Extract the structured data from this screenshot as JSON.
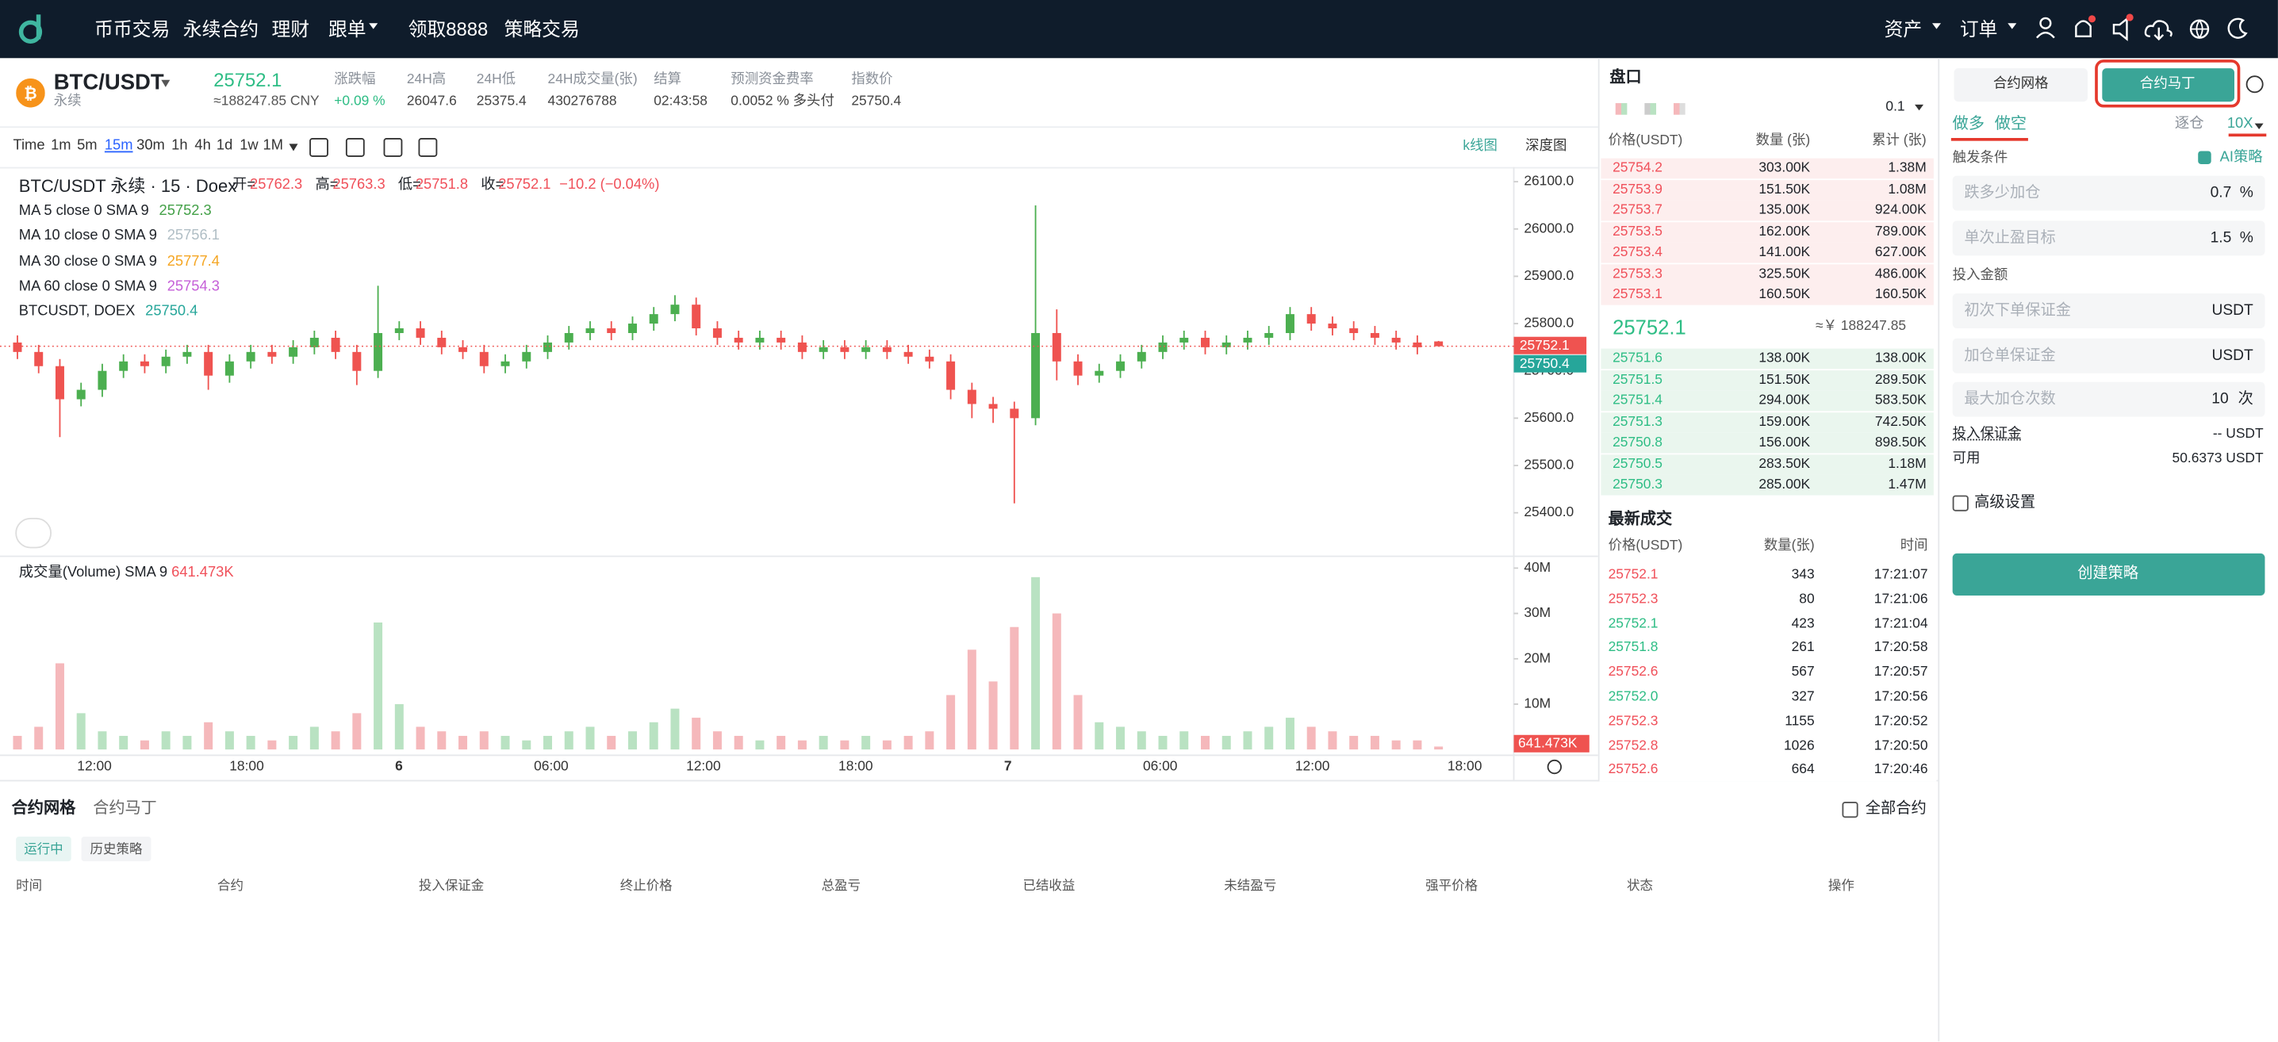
{
  "nav": {
    "items": [
      "币币交易",
      "永续合约",
      "理财",
      "跟单",
      "领取8888",
      "策略交易"
    ],
    "right": [
      "资产",
      "订单"
    ]
  },
  "ticker": {
    "symbol": "BTC/USDT",
    "sub": "永续",
    "price": "25752.1",
    "cny": "≈188247.85 CNY",
    "stats": [
      {
        "label": "涨跌幅",
        "value": "+0.09 %"
      },
      {
        "label": "24H高",
        "value": "26047.6"
      },
      {
        "label": "24H低",
        "value": "25375.4"
      },
      {
        "label": "24H成交量(张)",
        "value": "430276788"
      },
      {
        "label": "结算",
        "value": "02:43:58"
      },
      {
        "label": "预测资金费率",
        "value": "0.0052 % 多头付"
      },
      {
        "label": "指数价",
        "value": "25750.4"
      }
    ]
  },
  "toolbar": {
    "intervals": [
      "Time",
      "1m",
      "5m",
      "15m",
      "30m",
      "1h",
      "4h",
      "1d",
      "1w",
      "1M"
    ],
    "active_interval": 3,
    "views": [
      "k线图",
      "深度图"
    ],
    "active_view": 0
  },
  "kline": {
    "title": "BTC/USDT 永续 · 15 · Doex",
    "ohlc": [
      {
        "label": "开=",
        "value": "25762.3"
      },
      {
        "label": "高=",
        "value": "25763.3"
      },
      {
        "label": "低=",
        "value": "25751.8"
      },
      {
        "label": "收=",
        "value": "25752.1"
      }
    ],
    "change": "−10.2 (−0.04%)",
    "studies": [
      {
        "name": "MA 5 close 0 SMA 9",
        "value": "25752.3",
        "color": "#43a047"
      },
      {
        "name": "MA 10 close 0 SMA 9",
        "value": "25756.1",
        "color": "#b0bec5"
      },
      {
        "name": "MA 30 close 0 SMA 9",
        "value": "25777.4",
        "color": "#f5a623"
      },
      {
        "name": "MA 60 close 0 SMA 9",
        "value": "25754.3",
        "color": "#c55fd8"
      },
      {
        "name": "BTCUSDT, DOEX",
        "value": "25750.4",
        "color": "#26a69a"
      }
    ],
    "ylim": [
      25308,
      26131
    ],
    "yticks": [
      {
        "value": 26100,
        "label": "26100.0"
      },
      {
        "value": 26000,
        "label": "26000.0"
      },
      {
        "value": 25900,
        "label": "25900.0"
      },
      {
        "value": 25800,
        "label": "25800.0"
      },
      {
        "value": 25700,
        "label": "25700.0"
      },
      {
        "value": 25600,
        "label": "25600.0"
      },
      {
        "value": 25500,
        "label": "25500.0"
      },
      {
        "value": 25400,
        "label": "25400.0"
      }
    ],
    "last_price": {
      "value": 25752.1,
      "color": "#ef5350"
    },
    "index_price": {
      "value": 25750.4,
      "color": "#26a69a"
    },
    "up_color": "#4caf50",
    "down_color": "#ef5350",
    "candles": {
      "open": [
        25760,
        25740,
        25710,
        25640,
        25660,
        25700,
        25720,
        25710,
        25730,
        25740,
        25690,
        25720,
        25740,
        25730,
        25750,
        25770,
        25740,
        25700,
        25780,
        25790,
        25770,
        25750,
        25740,
        25710,
        25720,
        25740,
        25760,
        25780,
        25790,
        25780,
        25800,
        25820,
        25840,
        25790,
        25770,
        25760,
        25770,
        25760,
        25740,
        25750,
        25740,
        25750,
        25740,
        25730,
        25720,
        25660,
        25630,
        25620,
        25600,
        25780,
        25720,
        25690,
        25700,
        25720,
        25740,
        25760,
        25770,
        25750,
        25760,
        25770,
        25780,
        25820,
        25800,
        25790,
        25780,
        25770,
        25760,
        25762.3
      ],
      "high": [
        25775,
        25755,
        25725,
        25675,
        25715,
        25735,
        25735,
        25745,
        25755,
        25755,
        25735,
        25755,
        25755,
        25765,
        25785,
        25785,
        25755,
        25880,
        25805,
        25805,
        25785,
        25765,
        25755,
        25735,
        25755,
        25775,
        25795,
        25805,
        25805,
        25815,
        25835,
        25860,
        25855,
        25805,
        25785,
        25785,
        25785,
        25775,
        25765,
        25765,
        25765,
        25765,
        25755,
        25745,
        25735,
        25675,
        25645,
        25635,
        26050,
        25830,
        25735,
        25715,
        25735,
        25755,
        25775,
        25785,
        25785,
        25775,
        25785,
        25795,
        25835,
        25835,
        25815,
        25805,
        25795,
        25785,
        25775,
        25763.3
      ],
      "low": [
        25725,
        25695,
        25560,
        25625,
        25645,
        25685,
        25695,
        25695,
        25715,
        25660,
        25675,
        25705,
        25715,
        25715,
        25735,
        25725,
        25670,
        25685,
        25765,
        25755,
        25735,
        25725,
        25695,
        25695,
        25705,
        25725,
        25745,
        25765,
        25765,
        25765,
        25785,
        25805,
        25775,
        25755,
        25745,
        25745,
        25745,
        25725,
        25725,
        25725,
        25725,
        25725,
        25715,
        25705,
        25640,
        25600,
        25590,
        25420,
        25585,
        25680,
        25670,
        25675,
        25685,
        25705,
        25725,
        25745,
        25735,
        25735,
        25745,
        25755,
        25765,
        25785,
        25775,
        25765,
        25755,
        25745,
        25735,
        25751.8
      ],
      "close": [
        25740,
        25710,
        25640,
        25660,
        25700,
        25720,
        25710,
        25730,
        25740,
        25690,
        25720,
        25740,
        25730,
        25750,
        25770,
        25740,
        25700,
        25780,
        25790,
        25770,
        25750,
        25740,
        25710,
        25720,
        25740,
        25760,
        25780,
        25790,
        25780,
        25800,
        25820,
        25840,
        25790,
        25770,
        25760,
        25770,
        25760,
        25740,
        25750,
        25740,
        25750,
        25740,
        25730,
        25720,
        25660,
        25630,
        25620,
        25600,
        25780,
        25720,
        25690,
        25700,
        25720,
        25740,
        25760,
        25770,
        25750,
        25760,
        25770,
        25780,
        25820,
        25800,
        25790,
        25780,
        25770,
        25760,
        25750,
        25752.1
      ]
    },
    "volume": {
      "title": "成交量(Volume) SMA 9",
      "value": "641.473K",
      "ylim": [
        0,
        42600000
      ],
      "yticks": [
        {
          "value": 40000000,
          "label": "40M"
        },
        {
          "value": 30000000,
          "label": "30M"
        },
        {
          "value": 20000000,
          "label": "20M"
        },
        {
          "value": 10000000,
          "label": "10M"
        }
      ],
      "up_color": "#b9e2c2",
      "down_color": "#f5b8bb",
      "values": [
        3000000,
        5000000,
        19000000,
        8000000,
        4000000,
        3000000,
        2000000,
        4000000,
        3000000,
        6000000,
        4000000,
        3000000,
        2000000,
        3000000,
        5000000,
        4000000,
        8000000,
        28000000,
        10000000,
        5000000,
        4000000,
        3000000,
        4000000,
        3000000,
        2000000,
        3000000,
        4000000,
        5000000,
        3000000,
        4000000,
        6000000,
        9000000,
        7000000,
        4000000,
        3000000,
        2000000,
        3000000,
        2000000,
        3000000,
        2000000,
        3000000,
        2000000,
        3000000,
        4000000,
        12000000,
        22000000,
        15000000,
        27000000,
        38000000,
        30000000,
        12000000,
        6000000,
        5000000,
        4000000,
        3000000,
        4000000,
        3000000,
        3000000,
        4000000,
        5000000,
        7000000,
        5000000,
        4000000,
        3000000,
        3000000,
        2000000,
        2000000,
        641473
      ],
      "tag": {
        "value": 641473,
        "label": "641.473K"
      }
    },
    "xlabels": [
      "12:00",
      "18:00",
      "6",
      "06:00",
      "12:00",
      "18:00",
      "7",
      "06:00",
      "12:00",
      "18:00"
    ]
  },
  "orderbook": {
    "title": "盘口",
    "precision": "0.1",
    "columns": [
      "价格(USDT)",
      "数量 (张)",
      "累计 (张)"
    ],
    "asks": [
      [
        "25754.2",
        "303.00K",
        "1.38M"
      ],
      [
        "25753.9",
        "151.50K",
        "1.08M"
      ],
      [
        "25753.7",
        "135.00K",
        "924.00K"
      ],
      [
        "25753.5",
        "162.00K",
        "789.00K"
      ],
      [
        "25753.4",
        "141.00K",
        "627.00K"
      ],
      [
        "25753.3",
        "325.50K",
        "486.00K"
      ],
      [
        "25753.1",
        "160.50K",
        "160.50K"
      ]
    ],
    "mid": "25752.1",
    "mid_cny": "≈￥ 188247.85",
    "bids": [
      [
        "25751.6",
        "138.00K",
        "138.00K"
      ],
      [
        "25751.5",
        "151.50K",
        "289.50K"
      ],
      [
        "25751.4",
        "294.00K",
        "583.50K"
      ],
      [
        "25751.3",
        "159.00K",
        "742.50K"
      ],
      [
        "25750.8",
        "156.00K",
        "898.50K"
      ],
      [
        "25750.5",
        "283.50K",
        "1.18M"
      ],
      [
        "25750.3",
        "285.00K",
        "1.47M"
      ]
    ]
  },
  "trades": {
    "title": "最新成交",
    "columns": [
      "价格(USDT)",
      "数量(张)",
      "时间"
    ],
    "rows": [
      {
        "price": "25752.1",
        "qty": "343",
        "time": "17:21:07",
        "side": "sell"
      },
      {
        "price": "25752.3",
        "qty": "80",
        "time": "17:21:06",
        "side": "sell"
      },
      {
        "price": "25752.1",
        "qty": "423",
        "time": "17:21:04",
        "side": "buy"
      },
      {
        "price": "25751.8",
        "qty": "261",
        "time": "17:20:58",
        "side": "buy"
      },
      {
        "price": "25752.6",
        "qty": "567",
        "time": "17:20:57",
        "side": "sell"
      },
      {
        "price": "25752.0",
        "qty": "327",
        "time": "17:20:56",
        "side": "buy"
      },
      {
        "price": "25752.3",
        "qty": "1155",
        "time": "17:20:52",
        "side": "sell"
      },
      {
        "price": "25752.8",
        "qty": "1026",
        "time": "17:20:50",
        "side": "sell"
      },
      {
        "price": "25752.6",
        "qty": "664",
        "time": "17:20:46",
        "side": "sell"
      }
    ]
  },
  "strategy": {
    "tabs": [
      "合约网格",
      "合约马丁"
    ],
    "active_tab": 1,
    "directions": [
      "做多",
      "做空"
    ],
    "margin_mode": "逐仓",
    "leverage": "10X",
    "trigger_label": "触发条件",
    "ai_label": "AI策略",
    "trigger_inputs": [
      {
        "placeholder": "跌多少加仓",
        "value": "0.7",
        "unit": "%"
      },
      {
        "placeholder": "单次止盈目标",
        "value": "1.5",
        "unit": "%"
      }
    ],
    "amount_label": "投入金额",
    "amount_inputs": [
      {
        "placeholder": "初次下单保证金",
        "unit": "USDT"
      },
      {
        "placeholder": "加仓单保证金",
        "unit": "USDT"
      },
      {
        "placeholder": "最大加仓次数",
        "value": "10",
        "unit": "次"
      }
    ],
    "summary": [
      {
        "label": "投入保证金",
        "value": "-- USDT"
      },
      {
        "label": "可用",
        "value": "50.6373 USDT"
      }
    ],
    "advanced": "高级设置",
    "submit": "创建策略"
  },
  "bottom": {
    "tabs": [
      "合约网格",
      "合约马丁"
    ],
    "all_contracts": "全部合约",
    "subtabs": [
      "运行中",
      "历史策略"
    ],
    "columns": [
      "时间",
      "合约",
      "投入保证金",
      "终止价格",
      "总盈亏",
      "已结收益",
      "未结盈亏",
      "强平价格",
      "状态",
      "操作"
    ]
  }
}
